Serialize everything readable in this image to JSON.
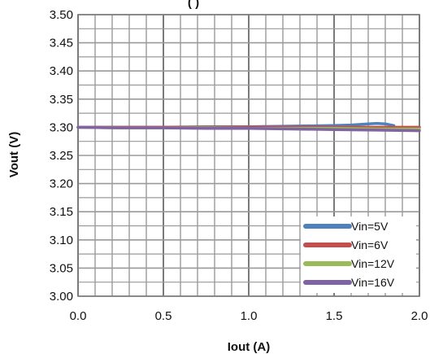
{
  "title_fragment": "(          )",
  "chart_data": {
    "type": "line",
    "title": "",
    "xlabel": "Iout (A)",
    "ylabel": "Vout (V)",
    "xlim": [
      0.0,
      2.0
    ],
    "ylim": [
      3.0,
      3.5
    ],
    "x_ticks": [
      "0.0",
      "0.5",
      "1.0",
      "1.5",
      "2.0"
    ],
    "y_ticks": [
      "3.00",
      "3.05",
      "3.10",
      "3.15",
      "3.20",
      "3.25",
      "3.30",
      "3.35",
      "3.40",
      "3.45",
      "3.50"
    ],
    "grid": true,
    "legend_position": "bottom-right",
    "series": [
      {
        "name": "Vin=5V",
        "color": "#4f81bd",
        "x": [
          0.0,
          0.25,
          0.5,
          0.75,
          1.0,
          1.25,
          1.5,
          1.6,
          1.7,
          1.75,
          1.8,
          1.85
        ],
        "y": [
          3.3,
          3.3,
          3.3,
          3.301,
          3.301,
          3.302,
          3.303,
          3.304,
          3.306,
          3.307,
          3.306,
          3.303
        ]
      },
      {
        "name": "Vin=6V",
        "color": "#c0504d",
        "x": [
          0.0,
          0.25,
          0.5,
          0.75,
          1.0,
          1.25,
          1.5,
          1.75,
          2.0
        ],
        "y": [
          3.3,
          3.3,
          3.3,
          3.3,
          3.3,
          3.3,
          3.3,
          3.3,
          3.3
        ]
      },
      {
        "name": "Vin=12V",
        "color": "#9bbb59",
        "x": [
          0.0,
          0.25,
          0.5,
          0.75,
          1.0,
          1.25,
          1.5,
          1.75,
          2.0
        ],
        "y": [
          3.3,
          3.299,
          3.299,
          3.299,
          3.298,
          3.298,
          3.298,
          3.297,
          3.297
        ]
      },
      {
        "name": "Vin=16V",
        "color": "#8064a2",
        "x": [
          0.0,
          0.25,
          0.5,
          0.75,
          1.0,
          1.25,
          1.5,
          1.75,
          2.0
        ],
        "y": [
          3.3,
          3.299,
          3.299,
          3.298,
          3.298,
          3.297,
          3.296,
          3.295,
          3.294
        ]
      }
    ]
  }
}
